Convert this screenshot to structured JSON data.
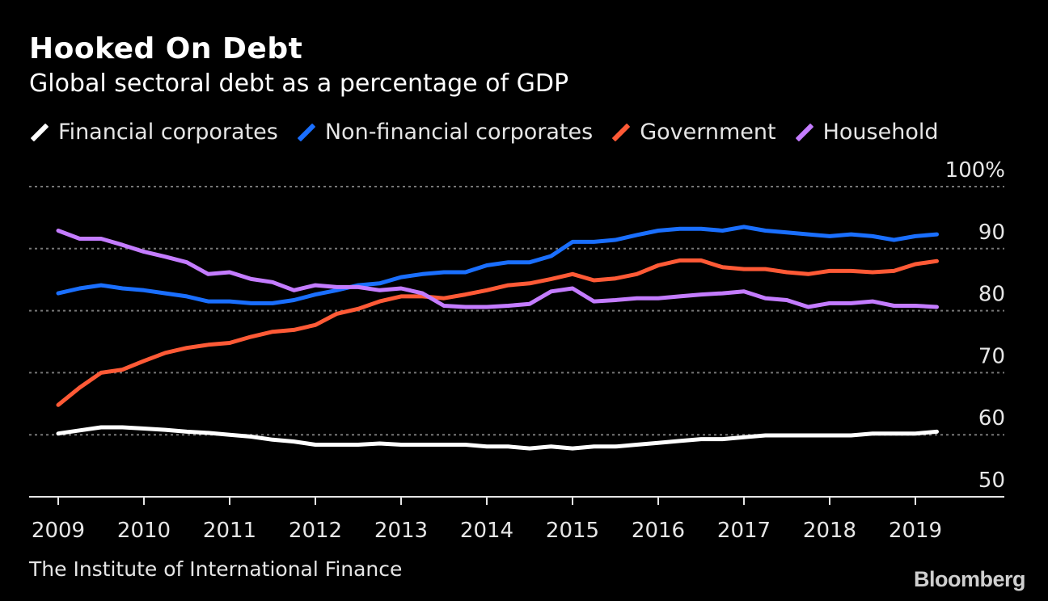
{
  "header": {
    "title": "Hooked On Debt",
    "subtitle": "Global sectoral debt as a percentage of GDP"
  },
  "footer": {
    "source": "The Institute of International Finance",
    "brand": "Bloomberg"
  },
  "colors": {
    "background": "#000000",
    "financial": "#ffffff",
    "nonfinancial": "#1a6fff",
    "government": "#ff5a36",
    "household": "#c47cff",
    "grid": "#777777"
  },
  "chart_data": {
    "type": "line",
    "title": "Hooked On Debt",
    "subtitle": "Global sectoral debt as a percentage of GDP",
    "xlabel": "",
    "ylabel": "",
    "xlim": [
      2009,
      2020
    ],
    "ylim": [
      50,
      100
    ],
    "y_ticks": [
      50,
      60,
      70,
      80,
      90,
      100
    ],
    "y_tick_labels": [
      "50",
      "60",
      "70",
      "80",
      "90",
      "100%"
    ],
    "x_ticks": [
      2009,
      2010,
      2011,
      2012,
      2013,
      2014,
      2015,
      2016,
      2017,
      2018,
      2019
    ],
    "x_tick_labels": [
      "2009",
      "2010",
      "2011",
      "2012",
      "2013",
      "2014",
      "2015",
      "2016",
      "2017",
      "2018",
      "2019"
    ],
    "grid": true,
    "legend_position": "top-left",
    "x": [
      2009.0,
      2009.25,
      2009.5,
      2009.75,
      2010.0,
      2010.25,
      2010.5,
      2010.75,
      2011.0,
      2011.25,
      2011.5,
      2011.75,
      2012.0,
      2012.25,
      2012.5,
      2012.75,
      2013.0,
      2013.25,
      2013.5,
      2013.75,
      2014.0,
      2014.25,
      2014.5,
      2014.75,
      2015.0,
      2015.25,
      2015.5,
      2015.75,
      2016.0,
      2016.25,
      2016.5,
      2016.75,
      2017.0,
      2017.25,
      2017.5,
      2017.75,
      2018.0,
      2018.25,
      2018.5,
      2018.75,
      2019.0,
      2019.25
    ],
    "series": [
      {
        "name": "Financial corporates",
        "color": "#ffffff",
        "values": [
          60.2,
          60.7,
          61.2,
          61.2,
          61.0,
          60.8,
          60.5,
          60.3,
          60.0,
          59.7,
          59.2,
          58.9,
          58.4,
          58.4,
          58.4,
          58.6,
          58.4,
          58.4,
          58.4,
          58.4,
          58.1,
          58.1,
          57.8,
          58.1,
          57.8,
          58.1,
          58.1,
          58.4,
          58.7,
          59.0,
          59.3,
          59.3,
          59.6,
          59.9,
          59.9,
          59.9,
          59.9,
          59.9,
          60.2,
          60.2,
          60.2,
          60.5
        ]
      },
      {
        "name": "Non-financial corporates",
        "color": "#1a6fff",
        "values": [
          82.8,
          83.6,
          84.1,
          83.6,
          83.3,
          82.8,
          82.3,
          81.5,
          81.5,
          81.2,
          81.2,
          81.7,
          82.6,
          83.3,
          84.1,
          84.4,
          85.4,
          85.9,
          86.2,
          86.2,
          87.3,
          87.8,
          87.8,
          88.8,
          91.1,
          91.1,
          91.4,
          92.2,
          92.9,
          93.2,
          93.2,
          92.9,
          93.5,
          92.9,
          92.6,
          92.3,
          92.0,
          92.3,
          92.0,
          91.4,
          92.0,
          92.3
        ]
      },
      {
        "name": "Government",
        "color": "#ff5a36",
        "values": [
          64.8,
          67.6,
          70.0,
          70.5,
          71.9,
          73.2,
          74.0,
          74.5,
          74.8,
          75.8,
          76.6,
          76.9,
          77.7,
          79.5,
          80.3,
          81.5,
          82.3,
          82.3,
          82.0,
          82.6,
          83.3,
          84.1,
          84.4,
          85.1,
          85.9,
          84.9,
          85.2,
          85.9,
          87.3,
          88.1,
          88.1,
          87.0,
          86.7,
          86.7,
          86.2,
          85.9,
          86.4,
          86.4,
          86.2,
          86.4,
          87.5,
          88.0
        ]
      },
      {
        "name": "Household",
        "color": "#c47cff",
        "values": [
          92.9,
          91.6,
          91.6,
          90.6,
          89.5,
          88.7,
          87.8,
          85.9,
          86.2,
          85.1,
          84.6,
          83.3,
          84.1,
          83.8,
          83.8,
          83.3,
          83.6,
          82.8,
          80.8,
          80.6,
          80.6,
          80.8,
          81.1,
          83.1,
          83.6,
          81.5,
          81.7,
          82.0,
          82.0,
          82.3,
          82.6,
          82.8,
          83.1,
          82.0,
          81.7,
          80.6,
          81.2,
          81.2,
          81.5,
          80.8,
          80.8,
          80.6
        ]
      }
    ]
  }
}
